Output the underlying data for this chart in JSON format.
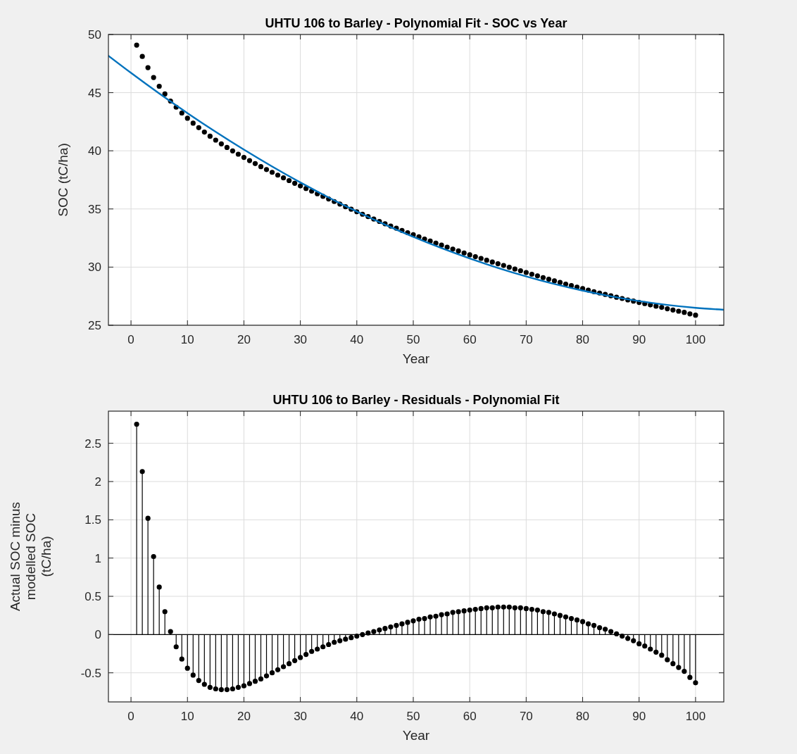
{
  "chart_data": [
    {
      "type": "scatter",
      "title": "UHTU 106 to Barley - Polynomial Fit - SOC vs Year",
      "xlabel": "Year",
      "ylabel": "SOC (tC/ha)",
      "xlim": [
        -4,
        105
      ],
      "ylim": [
        25,
        50
      ],
      "xticks": [
        0,
        10,
        20,
        30,
        40,
        50,
        60,
        70,
        80,
        90,
        100
      ],
      "yticks": [
        25,
        30,
        35,
        40,
        45,
        50
      ],
      "grid": true,
      "series": [
        {
          "marker": "circle",
          "color": "#000000",
          "x": [
            1,
            2,
            3,
            4,
            5,
            6,
            7,
            8,
            9,
            10,
            11,
            12,
            13,
            14,
            15,
            16,
            17,
            18,
            19,
            20,
            21,
            22,
            23,
            24,
            25,
            26,
            27,
            28,
            29,
            30,
            31,
            32,
            33,
            34,
            35,
            36,
            37,
            38,
            39,
            40,
            41,
            42,
            43,
            44,
            45,
            46,
            47,
            48,
            49,
            50,
            51,
            52,
            53,
            54,
            55,
            56,
            57,
            58,
            59,
            60,
            61,
            62,
            63,
            64,
            65,
            66,
            67,
            68,
            69,
            70,
            71,
            72,
            73,
            74,
            75,
            76,
            77,
            78,
            79,
            80,
            81,
            82,
            83,
            84,
            85,
            86,
            87,
            88,
            89,
            90,
            91,
            92,
            93,
            94,
            95,
            96,
            97,
            98,
            99,
            100
          ],
          "values": [
            49.09,
            48.11,
            47.15,
            46.3,
            45.55,
            44.89,
            44.28,
            43.75,
            43.25,
            42.8,
            42.38,
            41.99,
            41.61,
            41.26,
            40.92,
            40.6,
            40.29,
            39.99,
            39.71,
            39.43,
            39.16,
            38.9,
            38.64,
            38.39,
            38.15,
            37.91,
            37.67,
            37.44,
            37.21,
            36.98,
            36.76,
            36.53,
            36.31,
            36.08,
            35.86,
            35.64,
            35.42,
            35.19,
            34.98,
            34.76,
            34.55,
            34.34,
            34.13,
            33.93,
            33.73,
            33.53,
            33.34,
            33.15,
            32.96,
            32.78,
            32.6,
            32.41,
            32.24,
            32.06,
            31.89,
            31.72,
            31.55,
            31.39,
            31.22,
            31.06,
            30.9,
            30.75,
            30.59,
            30.44,
            30.29,
            30.14,
            29.99,
            29.83,
            29.69,
            29.54,
            29.39,
            29.25,
            29.1,
            28.96,
            28.82,
            28.68,
            28.54,
            28.41,
            28.28,
            28.15,
            28.02,
            27.89,
            27.77,
            27.65,
            27.53,
            27.41,
            27.3,
            27.18,
            27.08,
            26.96,
            26.86,
            26.75,
            26.64,
            26.54,
            26.42,
            26.31,
            26.21,
            26.11,
            25.98,
            25.87
          ]
        },
        {
          "type": "line",
          "marker": "none",
          "color": "#0072bd",
          "x": [
            -4,
            0,
            5,
            10,
            15,
            20,
            25,
            30,
            35,
            40,
            45,
            50,
            55,
            60,
            65,
            70,
            75,
            80,
            85,
            90,
            95,
            100,
            105
          ],
          "values": [
            48.17,
            46.7,
            44.93,
            43.24,
            41.63,
            40.1,
            38.65,
            37.28,
            35.99,
            34.78,
            33.65,
            32.6,
            31.63,
            30.74,
            29.93,
            29.2,
            28.55,
            27.98,
            27.49,
            27.08,
            26.75,
            26.5,
            26.33
          ]
        }
      ]
    },
    {
      "type": "lollipop",
      "title": "UHTU 106 to Barley - Residuals - Polynomial Fit",
      "xlabel": "Year",
      "ylabel": "Actual SOC minus modelled SOC (tC/ha)",
      "xlim": [
        -4,
        105
      ],
      "ylim": [
        -0.88,
        2.92
      ],
      "xticks": [
        0,
        10,
        20,
        30,
        40,
        50,
        60,
        70,
        80,
        90,
        100
      ],
      "yticks": [
        -0.5,
        0,
        0.5,
        1,
        1.5,
        2,
        2.5
      ],
      "grid": true,
      "marker": "circle",
      "color": "#000000",
      "x": [
        1,
        2,
        3,
        4,
        5,
        6,
        7,
        8,
        9,
        10,
        11,
        12,
        13,
        14,
        15,
        16,
        17,
        18,
        19,
        20,
        21,
        22,
        23,
        24,
        25,
        26,
        27,
        28,
        29,
        30,
        31,
        32,
        33,
        34,
        35,
        36,
        37,
        38,
        39,
        40,
        41,
        42,
        43,
        44,
        45,
        46,
        47,
        48,
        49,
        50,
        51,
        52,
        53,
        54,
        55,
        56,
        57,
        58,
        59,
        60,
        61,
        62,
        63,
        64,
        65,
        66,
        67,
        68,
        69,
        70,
        71,
        72,
        73,
        74,
        75,
        76,
        77,
        78,
        79,
        80,
        81,
        82,
        83,
        84,
        85,
        86,
        87,
        88,
        89,
        90,
        91,
        92,
        93,
        94,
        95,
        96,
        97,
        98,
        99,
        100
      ],
      "values": [
        2.75,
        2.13,
        1.52,
        1.02,
        0.62,
        0.3,
        0.04,
        -0.16,
        -0.32,
        -0.44,
        -0.53,
        -0.6,
        -0.65,
        -0.69,
        -0.71,
        -0.72,
        -0.72,
        -0.71,
        -0.69,
        -0.67,
        -0.64,
        -0.61,
        -0.58,
        -0.54,
        -0.5,
        -0.46,
        -0.42,
        -0.38,
        -0.34,
        -0.3,
        -0.26,
        -0.22,
        -0.19,
        -0.16,
        -0.13,
        -0.1,
        -0.08,
        -0.06,
        -0.04,
        -0.02,
        0,
        0.02,
        0.04,
        0.06,
        0.08,
        0.1,
        0.12,
        0.14,
        0.16,
        0.18,
        0.2,
        0.21,
        0.23,
        0.24,
        0.26,
        0.27,
        0.29,
        0.3,
        0.31,
        0.32,
        0.33,
        0.34,
        0.35,
        0.35,
        0.36,
        0.36,
        0.36,
        0.35,
        0.35,
        0.34,
        0.33,
        0.32,
        0.3,
        0.29,
        0.27,
        0.25,
        0.23,
        0.21,
        0.19,
        0.17,
        0.14,
        0.12,
        0.09,
        0.07,
        0.04,
        0.01,
        -0.02,
        -0.05,
        -0.08,
        -0.12,
        -0.15,
        -0.19,
        -0.23,
        -0.27,
        -0.33,
        -0.38,
        -0.43,
        -0.48,
        -0.56,
        -0.63
      ]
    }
  ]
}
